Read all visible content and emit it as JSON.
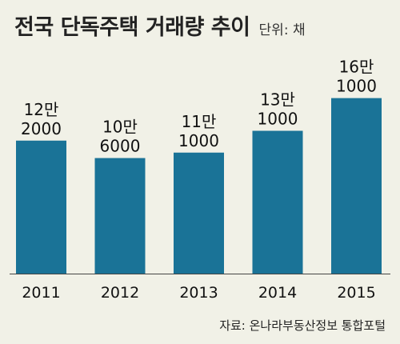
{
  "title": "전국 단독주택 거래량 추이",
  "unit_label": "단위: 채",
  "source": "자료: 온나라부동산정보 통합포털",
  "colors": {
    "bar": "#1a7397",
    "background": "#f1f1e7",
    "baseline": "#444444"
  },
  "chart_data": {
    "type": "bar",
    "categories": [
      "2011",
      "2012",
      "2013",
      "2014",
      "2015"
    ],
    "values": [
      122000,
      106000,
      111000,
      131000,
      161000
    ],
    "value_labels": [
      [
        "12만",
        "2000"
      ],
      [
        "10만",
        "6000"
      ],
      [
        "11만",
        "1000"
      ],
      [
        "13만",
        "1000"
      ],
      [
        "16만",
        "1000"
      ]
    ],
    "title": "전국 단독주택 거래량 추이",
    "unit": "단위: 채",
    "ylim": [
      0,
      171000
    ],
    "grid": false
  }
}
